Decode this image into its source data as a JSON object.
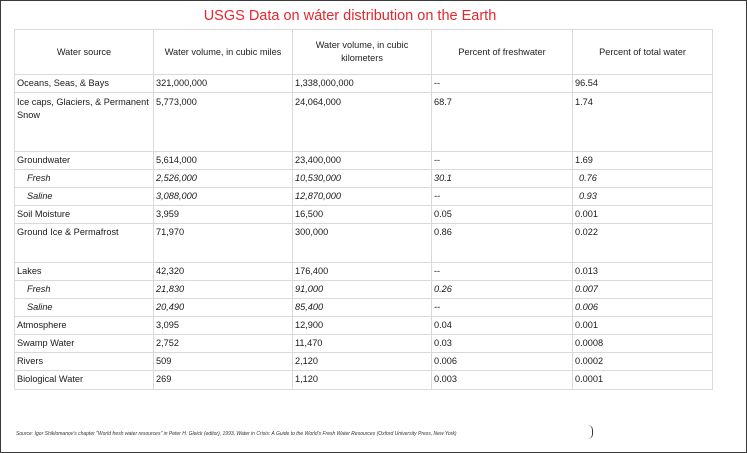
{
  "title": "USGS  Data on wáter distribution on the Earth",
  "headers": [
    "Water source",
    "Water volume, in cubic miles",
    "Water volume, in cubic kilometers",
    "Percent of freshwater",
    "Percent of total water"
  ],
  "rows": [
    {
      "source": "Oceans, Seas, & Bays",
      "miles": "321,000,000",
      "km": "1,338,000,000",
      "fresh": "--",
      "total": "96.54"
    },
    {
      "source": "Ice caps, Glaciers, & Permanent Snow",
      "miles": "5,773,000",
      "km": "24,064,000",
      "fresh": "68.7",
      "total": "1.74"
    },
    {
      "source": "Groundwater",
      "miles": "5,614,000",
      "km": "23,400,000",
      "fresh": "--",
      "total": "1.69"
    },
    {
      "source": "Fresh",
      "miles": "2,526,000",
      "km": "10,530,000",
      "fresh": "30.1",
      "total": "0.76"
    },
    {
      "source": "Saline",
      "miles": "3,088,000",
      "km": "12,870,000",
      "fresh": "--",
      "total": "0.93"
    },
    {
      "source": "Soil Moisture",
      "miles": "3,959",
      "km": "16,500",
      "fresh": "0.05",
      "total": "0.001"
    },
    {
      "source": "Ground Ice & Permafrost",
      "miles": "71,970",
      "km": "300,000",
      "fresh": "0.86",
      "total": "0.022"
    },
    {
      "source": "Lakes",
      "miles": "42,320",
      "km": "176,400",
      "fresh": "--",
      "total": "0.013"
    },
    {
      "source": "Fresh",
      "miles": "21,830",
      "km": "91,000",
      "fresh": "0.26",
      "total": "0.007"
    },
    {
      "source": "Saline",
      "miles": "20,490",
      "km": "85,400",
      "fresh": "--",
      "total": "0.006"
    },
    {
      "source": "Atmosphere",
      "miles": "3,095",
      "km": "12,900",
      "fresh": "0.04",
      "total": "0.001"
    },
    {
      "source": "Swamp Water",
      "miles": "2,752",
      "km": "11,470",
      "fresh": "0.03",
      "total": "0.0008"
    },
    {
      "source": "Rivers",
      "miles": "509",
      "km": "2,120",
      "fresh": "0.006",
      "total": "0.0002"
    },
    {
      "source": "Biological Water",
      "miles": "269",
      "km": "1,120",
      "fresh": "0.003",
      "total": "0.0001"
    }
  ],
  "source_note": "Source: Igor Shiklomanov's chapter \"World fresh water resources\" in Peter H. Gleick (editor), 1993, Water in Crisis: A Guide to the World's Fresh Water Resources (Oxford University Press, New York)"
}
